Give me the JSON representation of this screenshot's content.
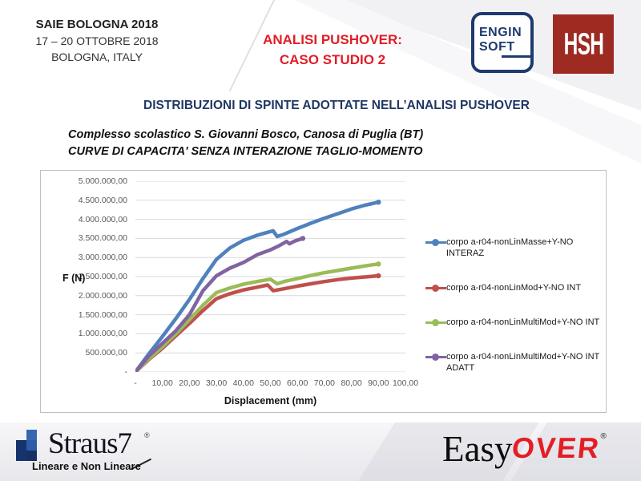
{
  "event": {
    "title": "SAIE BOLOGNA 2018",
    "dates": "17 – 20 OTTOBRE 2018",
    "location": "BOLOGNA, ITALY"
  },
  "slide_title": {
    "line1": "ANALISI PUSHOVER:",
    "line2": "CASO STUDIO 2"
  },
  "logos": {
    "enginsoft_line1": "ENGIN",
    "enginsoft_line2": "SOFT",
    "hsh": "HSH",
    "straus7": "Straus7",
    "straus7_reg": "®",
    "straus7_tagline": "Lineare e Non Lineare",
    "easyover_easy": "Easy",
    "easyover_over": "OVER",
    "easyover_reg": "®"
  },
  "heading": "DISTRIBUZIONI DI SPINTE ADOTTATE NELL’ANALISI PUSHOVER",
  "subtitle": {
    "line1": "Complesso scolastico S. Giovanni Bosco, Canosa di Puglia (BT)",
    "line2": "CURVE DI CAPACITA' SENZA INTERAZIONE TAGLIO-MOMENTO"
  },
  "chart_data": {
    "type": "line",
    "title": "",
    "xlabel": "Displacement (mm)",
    "ylabel": "F (N)",
    "xlim": [
      0,
      100
    ],
    "ylim": [
      0,
      5000000
    ],
    "grid": "horizontal",
    "grid_color": "#d9d9d9",
    "legend_position": "right",
    "x_ticks": [
      "-",
      "10,00",
      "20,00",
      "30,00",
      "40,00",
      "50,00",
      "60,00",
      "70,00",
      "80,00",
      "90,00",
      "100,00"
    ],
    "y_ticks": [
      "5.000.000,00",
      "4.500.000,00",
      "4.000.000,00",
      "3.500.000,00",
      "3.000.000,00",
      "2.500.000,00",
      "2.000.000,00",
      "1.500.000,00",
      "1.000.000,00",
      "500.000,00",
      "-"
    ],
    "series": [
      {
        "name": "corpo a-r04-nonLinMasse+Y-NO INTERAZ",
        "color": "#4F81BD",
        "points": [
          [
            0,
            0
          ],
          [
            5,
            480000
          ],
          [
            10,
            930000
          ],
          [
            15,
            1400000
          ],
          [
            20,
            1900000
          ],
          [
            25,
            2450000
          ],
          [
            30,
            2950000
          ],
          [
            35,
            3250000
          ],
          [
            40,
            3450000
          ],
          [
            45,
            3580000
          ],
          [
            48,
            3640000
          ],
          [
            51,
            3700000
          ],
          [
            52.5,
            3550000
          ],
          [
            55,
            3610000
          ],
          [
            60,
            3760000
          ],
          [
            65,
            3900000
          ],
          [
            70,
            4030000
          ],
          [
            75,
            4150000
          ],
          [
            80,
            4270000
          ],
          [
            85,
            4370000
          ],
          [
            90,
            4450000
          ]
        ]
      },
      {
        "name": "corpo a-r04-nonLinMod+Y-NO INT",
        "color": "#C0504D",
        "points": [
          [
            0,
            0
          ],
          [
            5,
            330000
          ],
          [
            10,
            620000
          ],
          [
            15,
            950000
          ],
          [
            20,
            1270000
          ],
          [
            25,
            1610000
          ],
          [
            30,
            1920000
          ],
          [
            35,
            2050000
          ],
          [
            40,
            2150000
          ],
          [
            45,
            2220000
          ],
          [
            49,
            2280000
          ],
          [
            51,
            2130000
          ],
          [
            55,
            2180000
          ],
          [
            60,
            2250000
          ],
          [
            65,
            2310000
          ],
          [
            70,
            2370000
          ],
          [
            75,
            2420000
          ],
          [
            80,
            2460000
          ],
          [
            85,
            2490000
          ],
          [
            90,
            2520000
          ]
        ]
      },
      {
        "name": "corpo a-r04-nonLinMultiMod+Y-NO INT",
        "color": "#9BBB59",
        "points": [
          [
            0,
            0
          ],
          [
            5,
            350000
          ],
          [
            10,
            660000
          ],
          [
            15,
            1000000
          ],
          [
            20,
            1370000
          ],
          [
            25,
            1750000
          ],
          [
            30,
            2080000
          ],
          [
            35,
            2200000
          ],
          [
            40,
            2300000
          ],
          [
            45,
            2370000
          ],
          [
            50,
            2430000
          ],
          [
            52.5,
            2310000
          ],
          [
            55,
            2370000
          ],
          [
            60,
            2450000
          ],
          [
            65,
            2530000
          ],
          [
            70,
            2600000
          ],
          [
            75,
            2660000
          ],
          [
            80,
            2720000
          ],
          [
            85,
            2780000
          ],
          [
            90,
            2830000
          ]
        ]
      },
      {
        "name": "corpo a-r04-nonLinMultiMod+Y-NO INT ADATT",
        "color": "#8064A2",
        "points": [
          [
            0,
            0
          ],
          [
            5,
            420000
          ],
          [
            10,
            750000
          ],
          [
            15,
            1080000
          ],
          [
            20,
            1500000
          ],
          [
            25,
            2130000
          ],
          [
            30,
            2520000
          ],
          [
            35,
            2720000
          ],
          [
            40,
            2870000
          ],
          [
            45,
            3070000
          ],
          [
            50,
            3200000
          ],
          [
            53,
            3300000
          ],
          [
            56,
            3420000
          ],
          [
            57,
            3360000
          ],
          [
            59,
            3430000
          ],
          [
            62,
            3500000
          ]
        ]
      }
    ]
  },
  "straus7_squares": [
    {
      "row": 0,
      "col": 1,
      "color": "#3767b0"
    },
    {
      "row": 1,
      "col": 0,
      "color": "#16336e"
    },
    {
      "row": 1,
      "col": 1,
      "color": "#2d5ba8"
    },
    {
      "row": 2,
      "col": 0,
      "color": "#16336e"
    },
    {
      "row": 2,
      "col": 1,
      "color": "#1a2f63"
    }
  ]
}
